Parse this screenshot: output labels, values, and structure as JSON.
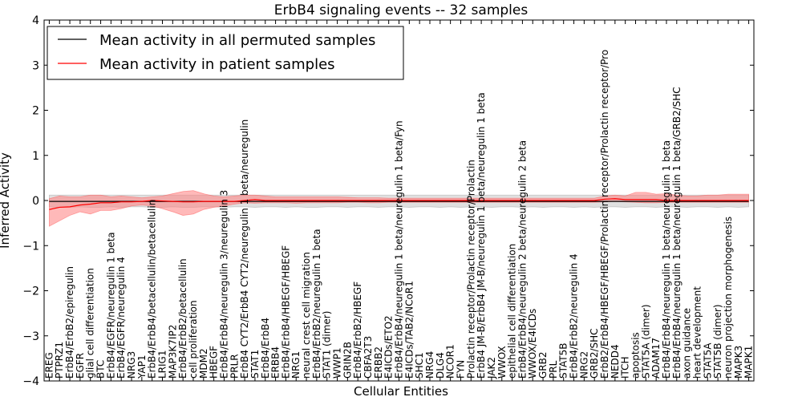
{
  "chart_data": {
    "type": "line",
    "title": "ErbB4 signaling events -- 32 samples",
    "xlabel": "Cellular Entities",
    "ylabel": "Inferred Activity",
    "ylim": [
      -4,
      4
    ],
    "yticks": [
      -4,
      -3,
      -2,
      -1,
      0,
      1,
      2,
      3,
      4
    ],
    "grid": false,
    "legend_position": "top-left",
    "colors": {
      "permuted": "#000000",
      "patient": "#ff0000",
      "patient_band": "#ff8080",
      "permuted_band": "#bbbbbb"
    },
    "categories": [
      "EREG",
      "PTPRZ1",
      "ErbB4/ErbB2/epiregulin",
      "EGFR",
      "glial cell differentiation",
      "BTC",
      "ErbB4/EGFR/neuregulin 1 beta",
      "ErbB4/EGFR/neuregulin 4",
      "NRG3",
      "YAP1",
      "ErbB4/ErbB4/betacellulin/betacellulin",
      "LRIG1",
      "MAP3K7IP2",
      "ErbB4/ErbB2/betacellulin",
      "cell proliferation",
      "MDM2",
      "HBEGF",
      "ErbB4/ErbB4/neuregulin 3/neuregulin 3",
      "PRLR",
      "ErbB4 CYT2/ErbB4 CYT2/neuregulin 1 beta/neuregulin",
      "STAT1",
      "ErbB4/ErbB4",
      "ERBB4",
      "ErbB4/ErbB4/HBEGF/HBEGF",
      "NRG1",
      "neural crest cell migration",
      "ErbB4/ErbB2/neuregulin 1 beta",
      "STAT1 (dimer)",
      "WWP1",
      "GRIN2B",
      "ErbB4/ErbB2/HBEGF",
      "CBFA2T3",
      "ERBB2",
      "E4ICDs/ETO2",
      "ErbB4/ErbB4/neuregulin 1 beta/neuregulin 1 beta/Fyn",
      "E4ICDs/TAB2/NCoR1",
      "SHC1",
      "NRG4",
      "DLG4",
      "NCOR1",
      "FYN",
      "Prolactin receptor/Prolactin receptor/Prolactin",
      "ErbB4 JM-B/ErbB4 JM-B/neuregulin 1 beta/neuregulin 1 beta",
      "JAK2",
      "WWOX",
      "epithelial cell differentiation",
      "ErbB4/ErbB4/neuregulin 2 beta/neuregulin 2 beta",
      "WWOX/E4ICDs",
      "GRB2",
      "PRL",
      "STAT5B",
      "ErbB4/ErbB2/neuregulin 4",
      "NRG2",
      "GRB2/SHC",
      "ErbB2/ErbB4/HBEGF/HBEGF/Prolactin receptor/Prolactin receptor/Pro",
      "NEDD4",
      "ITCH",
      "apoptosis",
      "STAT5A (dimer)",
      "ADAM17",
      "ErbB4/ErbB4/neuregulin 1 beta/neuregulin 1 beta",
      "ErbB4/ErbB4/neuregulin 1 beta/neuregulin 1 beta/GRB2/SHC",
      "axon guidance",
      "heart development",
      "STAT5A",
      "STAT5B (dimer)",
      "neuron projection morphogenesis",
      "MAPK3",
      "MAPK1"
    ],
    "series": [
      {
        "name": "Mean activity in all permuted samples",
        "values": [
          -0.02,
          -0.02,
          -0.02,
          -0.02,
          -0.02,
          -0.02,
          -0.02,
          -0.02,
          -0.02,
          -0.02,
          -0.02,
          -0.02,
          -0.02,
          -0.02,
          -0.02,
          -0.02,
          -0.02,
          -0.02,
          -0.02,
          -0.02,
          -0.02,
          -0.02,
          -0.02,
          -0.02,
          -0.02,
          -0.02,
          -0.02,
          -0.02,
          -0.02,
          -0.02,
          -0.02,
          -0.02,
          -0.02,
          -0.02,
          -0.02,
          -0.02,
          -0.02,
          -0.02,
          -0.02,
          -0.02,
          -0.02,
          -0.02,
          -0.02,
          -0.02,
          -0.02,
          -0.02,
          -0.02,
          -0.02,
          -0.02,
          -0.02,
          -0.02,
          -0.02,
          -0.02,
          -0.02,
          -0.02,
          -0.02,
          -0.02,
          -0.02,
          -0.02,
          -0.02,
          -0.02,
          -0.02,
          -0.02,
          -0.02,
          -0.02,
          -0.02,
          -0.02,
          -0.02,
          -0.02
        ],
        "lower": [
          -0.14,
          -0.15,
          -0.15,
          -0.14,
          -0.15,
          -0.15,
          -0.14,
          -0.15,
          -0.14,
          -0.14,
          -0.15,
          -0.15,
          -0.14,
          -0.15,
          -0.15,
          -0.14,
          -0.14,
          -0.15,
          -0.14,
          -0.14,
          -0.15,
          -0.14,
          -0.14,
          -0.15,
          -0.14,
          -0.15,
          -0.15,
          -0.14,
          -0.14,
          -0.15,
          -0.14,
          -0.14,
          -0.15,
          -0.14,
          -0.14,
          -0.15,
          -0.14,
          -0.14,
          -0.15,
          -0.14,
          -0.15,
          -0.14,
          -0.14,
          -0.15,
          -0.14,
          -0.14,
          -0.15,
          -0.14,
          -0.15,
          -0.14,
          -0.14,
          -0.15,
          -0.14,
          -0.15,
          -0.14,
          -0.14,
          -0.15,
          -0.14,
          -0.14,
          -0.15,
          -0.14,
          -0.14,
          -0.15,
          -0.14,
          -0.14,
          -0.15,
          -0.14,
          -0.15,
          -0.14
        ],
        "upper": [
          0.12,
          0.12,
          0.12,
          0.12,
          0.12,
          0.12,
          0.12,
          0.12,
          0.12,
          0.12,
          0.12,
          0.12,
          0.12,
          0.12,
          0.12,
          0.12,
          0.12,
          0.12,
          0.12,
          0.12,
          0.12,
          0.12,
          0.12,
          0.12,
          0.12,
          0.12,
          0.12,
          0.12,
          0.12,
          0.12,
          0.12,
          0.12,
          0.12,
          0.12,
          0.12,
          0.12,
          0.12,
          0.12,
          0.12,
          0.12,
          0.12,
          0.12,
          0.12,
          0.12,
          0.12,
          0.12,
          0.12,
          0.12,
          0.12,
          0.12,
          0.12,
          0.12,
          0.12,
          0.12,
          0.12,
          0.12,
          0.12,
          0.12,
          0.12,
          0.12,
          0.12,
          0.12,
          0.12,
          0.12,
          0.12,
          0.12,
          0.12,
          0.12,
          0.12
        ]
      },
      {
        "name": "Mean activity in patient samples",
        "values": [
          -0.2,
          -0.15,
          -0.14,
          -0.1,
          -0.08,
          -0.05,
          -0.05,
          -0.03,
          -0.03,
          -0.02,
          0.0,
          -0.01,
          -0.02,
          -0.03,
          -0.03,
          -0.02,
          -0.02,
          -0.02,
          -0.02,
          0.0,
          0.02,
          0.0,
          0.0,
          0.0,
          0.0,
          0.0,
          0.0,
          0.0,
          0.0,
          0.0,
          0.0,
          0.0,
          0.0,
          0.0,
          0.0,
          0.0,
          0.0,
          0.0,
          0.0,
          0.0,
          0.0,
          0.0,
          0.0,
          0.0,
          0.0,
          0.0,
          0.0,
          0.0,
          0.0,
          0.0,
          0.0,
          0.0,
          0.0,
          0.0,
          0.03,
          0.04,
          0.02,
          0.02,
          0.02,
          0.02,
          0.0,
          0.0,
          0.0,
          0.0,
          0.0,
          0.0,
          0.0,
          0.0,
          0.0
        ],
        "lower": [
          -0.57,
          -0.45,
          -0.33,
          -0.25,
          -0.3,
          -0.22,
          -0.22,
          -0.18,
          -0.12,
          -0.1,
          -0.12,
          -0.18,
          -0.25,
          -0.33,
          -0.3,
          -0.2,
          -0.15,
          -0.12,
          -0.08,
          -0.05,
          -0.06,
          -0.05,
          -0.05,
          -0.05,
          -0.06,
          -0.05,
          -0.05,
          -0.05,
          -0.05,
          -0.04,
          -0.04,
          -0.05,
          -0.05,
          -0.04,
          -0.04,
          -0.04,
          -0.04,
          -0.04,
          -0.04,
          -0.04,
          -0.04,
          -0.04,
          -0.04,
          -0.04,
          -0.04,
          -0.04,
          -0.04,
          -0.04,
          -0.04,
          -0.04,
          -0.04,
          -0.04,
          -0.04,
          -0.04,
          -0.03,
          -0.02,
          -0.03,
          -0.04,
          -0.05,
          -0.05,
          -0.04,
          -0.04,
          -0.04,
          -0.04,
          -0.04,
          -0.04,
          -0.04,
          -0.04,
          -0.04
        ],
        "upper": [
          0.04,
          0.1,
          0.08,
          0.08,
          0.12,
          0.12,
          0.08,
          0.1,
          0.08,
          0.06,
          0.08,
          0.1,
          0.15,
          0.2,
          0.22,
          0.15,
          0.1,
          0.08,
          0.1,
          0.12,
          0.12,
          0.1,
          0.08,
          0.08,
          0.08,
          0.08,
          0.08,
          0.08,
          0.08,
          0.07,
          0.06,
          0.06,
          0.06,
          0.05,
          0.05,
          0.05,
          0.05,
          0.05,
          0.05,
          0.05,
          0.05,
          0.05,
          0.05,
          0.05,
          0.05,
          0.05,
          0.05,
          0.05,
          0.05,
          0.05,
          0.05,
          0.05,
          0.05,
          0.05,
          0.1,
          0.12,
          0.1,
          0.18,
          0.18,
          0.14,
          0.15,
          0.12,
          0.1,
          0.1,
          0.12,
          0.12,
          0.14,
          0.14,
          0.14
        ]
      }
    ]
  }
}
